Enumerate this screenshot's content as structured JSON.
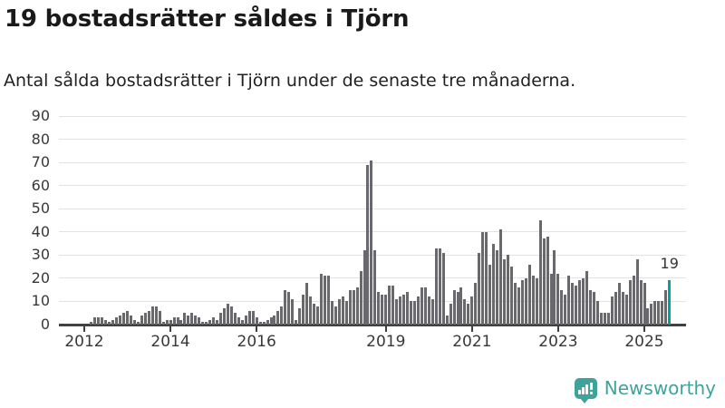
{
  "header": {
    "title": "19 bostadsrätter såldes i Tjörn",
    "subtitle": "Antal sålda bostadsrätter i Tjörn under de senaste tre månaderna."
  },
  "chart_data": {
    "type": "bar",
    "title": "19 bostadsrätter såldes i Tjörn",
    "subtitle": "Antal sålda bostadsrätter i Tjörn under de senaste tre månaderna.",
    "ylabel": "Antal sålda bostadsrätter",
    "xlabel": "",
    "grid": "horizontal",
    "ylim": [
      0,
      90
    ],
    "y_ticks": [
      0,
      10,
      20,
      30,
      40,
      50,
      60,
      70,
      80,
      90
    ],
    "x_tick_years": [
      2012,
      2014,
      2016,
      2019,
      2021,
      2023,
      2025
    ],
    "x_start": "2012-01",
    "x_end": "2025-08",
    "values": [
      0,
      0,
      1,
      3,
      3,
      3,
      2,
      1,
      2,
      3,
      4,
      5,
      6,
      4,
      2,
      1,
      4,
      5,
      6,
      8,
      8,
      6,
      1,
      2,
      2,
      3,
      3,
      2,
      5,
      4,
      5,
      4,
      3,
      1,
      1,
      2,
      3,
      2,
      5,
      7,
      9,
      8,
      5,
      3,
      2,
      4,
      6,
      6,
      3,
      1,
      1,
      2,
      3,
      4,
      6,
      8,
      15,
      14,
      11,
      2,
      7,
      13,
      18,
      12,
      9,
      8,
      22,
      21,
      21,
      10,
      8,
      11,
      12,
      10,
      15,
      15,
      16,
      23,
      32,
      69,
      71,
      32,
      14,
      13,
      13,
      17,
      17,
      11,
      12,
      13,
      14,
      10,
      10,
      12,
      16,
      16,
      12,
      11,
      33,
      33,
      31,
      4,
      9,
      15,
      14,
      16,
      11,
      9,
      12,
      18,
      31,
      40,
      40,
      26,
      35,
      32,
      41,
      28,
      30,
      25,
      18,
      16,
      19,
      20,
      26,
      21,
      20,
      45,
      37,
      38,
      22,
      32,
      22,
      15,
      13,
      21,
      18,
      17,
      19,
      20,
      23,
      15,
      14,
      10,
      5,
      5,
      5,
      12,
      14,
      18,
      14,
      13,
      19,
      21,
      28,
      19,
      18,
      7,
      9,
      10,
      10,
      10,
      15,
      19
    ],
    "highlight": {
      "index": 163,
      "value": 19,
      "label": "19"
    },
    "colors": {
      "bar": "#69696d",
      "highlight": "#00a3a0"
    }
  },
  "branding": {
    "name": "Newsworthy",
    "color": "#3fa39c"
  }
}
